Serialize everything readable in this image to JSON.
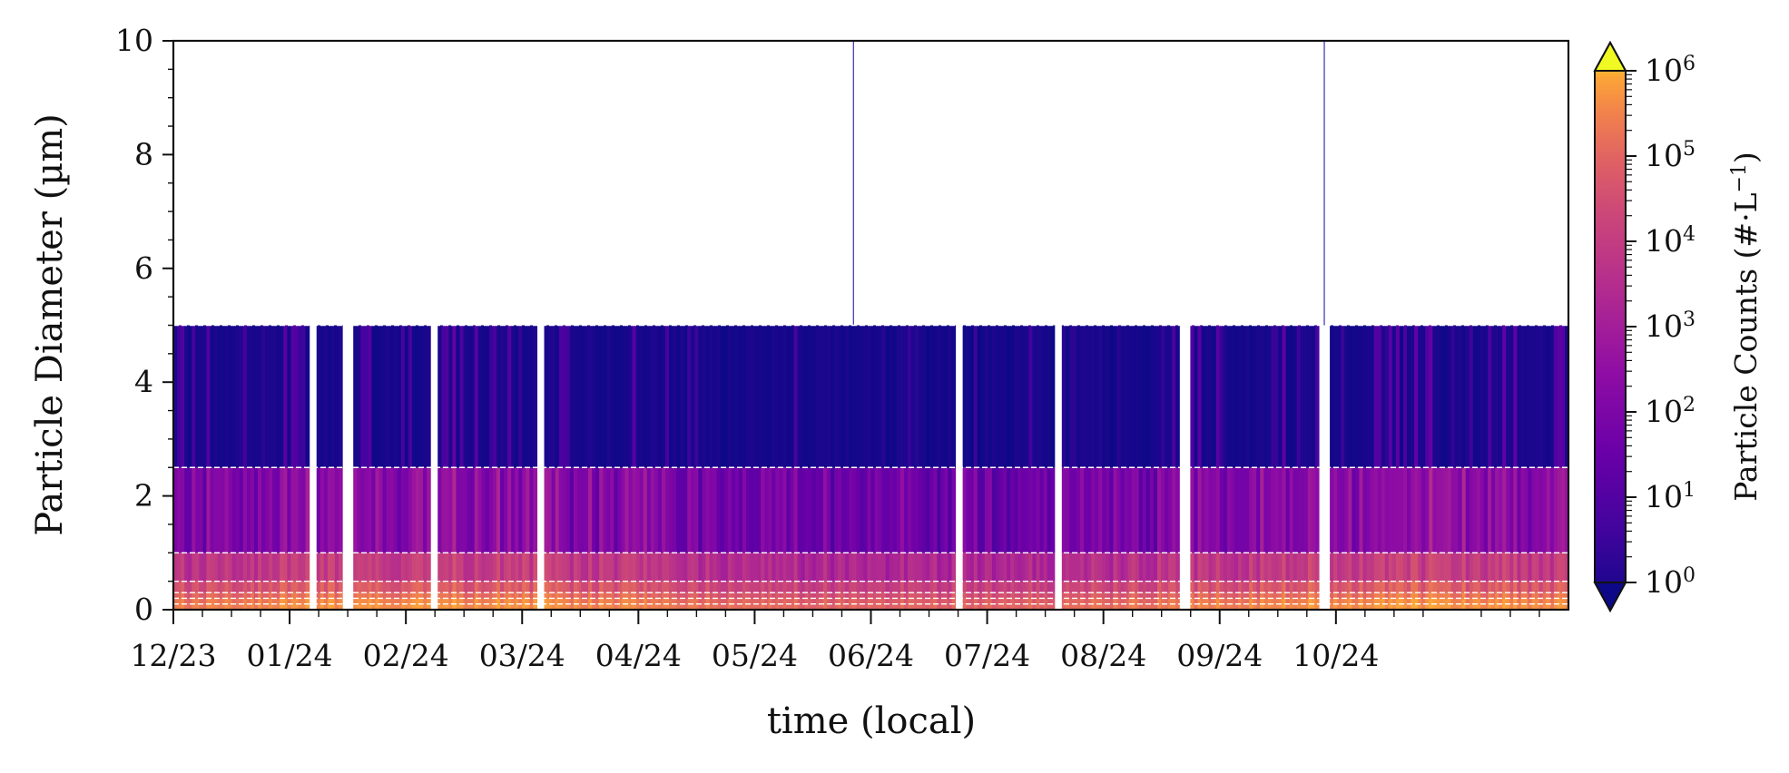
{
  "chart_data": {
    "type": "heatmap",
    "title": "",
    "xlabel": "time (local)",
    "ylabel": "Particle Diameter (µm)",
    "x_start": "2023-12",
    "x_end": "2024-11",
    "x_tick_labels": [
      "12/23",
      "01/24",
      "02/24",
      "03/24",
      "04/24",
      "05/24",
      "06/24",
      "07/24",
      "08/24",
      "09/24",
      "10/24"
    ],
    "ylim": [
      0,
      10
    ],
    "y_ticks": [
      0,
      2,
      4,
      6,
      8,
      10
    ],
    "size_bin_edges_um": [
      0,
      0.1,
      0.2,
      0.3,
      0.5,
      1.0,
      2.5,
      5.0
    ],
    "bin_reference_lines_um": [
      0.1,
      0.2,
      0.3,
      0.5,
      1.0,
      2.5,
      5.0
    ],
    "typical_log10_counts_per_bin": [
      5.1,
      5.0,
      4.7,
      4.3,
      3.6,
      2.1,
      0.6
    ],
    "colorbar": {
      "label_prefix": "Particle Counts (#·L",
      "label_exponent": "−1",
      "label_suffix": ")",
      "scale": "log",
      "range": [
        1,
        1000000
      ],
      "tick_labels": [
        {
          "base": "10",
          "exp": "0"
        },
        {
          "base": "10",
          "exp": "1"
        },
        {
          "base": "10",
          "exp": "2"
        },
        {
          "base": "10",
          "exp": "3"
        },
        {
          "base": "10",
          "exp": "4"
        },
        {
          "base": "10",
          "exp": "5"
        },
        {
          "base": "10",
          "exp": "6"
        }
      ],
      "extend": "both",
      "colormap": "plasma"
    },
    "data_gap_months": [
      1.2,
      1.5,
      2.25,
      3.15,
      6.75,
      7.6,
      8.7,
      9.9
    ],
    "single_spike_months": [
      5.85,
      9.9
    ]
  }
}
